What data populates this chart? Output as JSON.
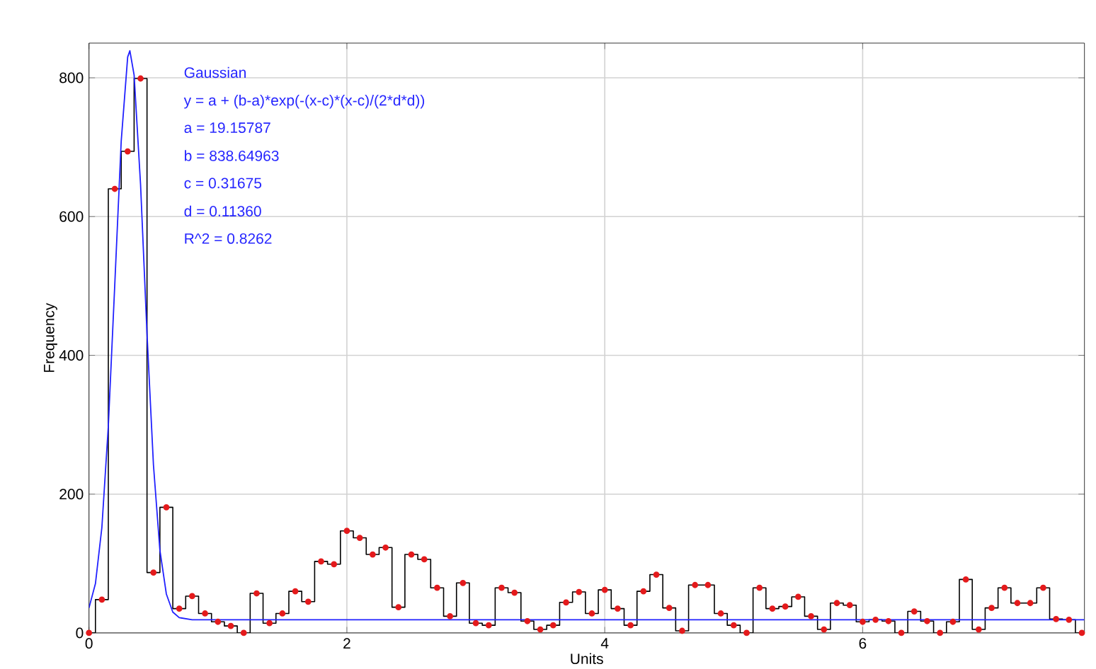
{
  "chart_data": {
    "type": "step",
    "xlabel": "Units",
    "ylabel": "Frequency",
    "xlim": [
      0,
      7.72
    ],
    "ylim": [
      0,
      850
    ],
    "xticks": [
      0,
      2,
      4,
      6
    ],
    "yticks": [
      0,
      200,
      400,
      600,
      800
    ],
    "grid": true,
    "series": [
      {
        "marker": "circle",
        "color": "#e41a1c",
        "x": [
          0,
          0.1,
          0.2,
          0.3,
          0.4,
          0.5,
          0.6,
          0.7,
          0.8,
          0.9,
          1.0,
          1.1,
          1.2,
          1.3,
          1.4,
          1.5,
          1.6,
          1.7,
          1.8,
          1.9,
          2.0,
          2.1,
          2.2,
          2.3,
          2.4,
          2.5,
          2.6,
          2.7,
          2.8,
          2.9,
          3.0,
          3.1,
          3.2,
          3.3,
          3.4,
          3.5,
          3.6,
          3.7,
          3.8,
          3.9,
          4.0,
          4.1,
          4.2,
          4.3,
          4.4,
          4.5,
          4.6,
          4.7,
          4.8,
          4.9,
          5.0,
          5.1,
          5.2,
          5.3,
          5.4,
          5.5,
          5.6,
          5.7,
          5.8,
          5.9,
          6.0,
          6.1,
          6.2,
          6.3,
          6.4,
          6.5,
          6.6,
          6.7,
          6.8,
          6.9,
          7.0,
          7.1,
          7.2,
          7.3,
          7.4,
          7.5,
          7.6,
          7.7
        ],
        "values": [
          0,
          48,
          640,
          694,
          799,
          87,
          181,
          35,
          53,
          28,
          16,
          10,
          0,
          57,
          14,
          28,
          60,
          45,
          103,
          99,
          147,
          137,
          113,
          123,
          37,
          113,
          106,
          65,
          24,
          72,
          14,
          11,
          65,
          58,
          17,
          5,
          11,
          44,
          59,
          28,
          62,
          35,
          11,
          60,
          84,
          36,
          3,
          69,
          69,
          28,
          11,
          0,
          65,
          35,
          38,
          52,
          24,
          5,
          43,
          40,
          16,
          19,
          17,
          0,
          31,
          17,
          0,
          16,
          77,
          5,
          36,
          65,
          43,
          43,
          65,
          20,
          19,
          0
        ]
      },
      {
        "type": "line",
        "marker": "none",
        "color": "#2020ff",
        "x": [
          0,
          0.05,
          0.1,
          0.15,
          0.2,
          0.25,
          0.3,
          0.317,
          0.35,
          0.4,
          0.45,
          0.5,
          0.55,
          0.6,
          0.65,
          0.7,
          0.8,
          1.0,
          7.72
        ],
        "values": [
          36,
          71,
          152,
          298,
          502,
          709,
          830,
          839,
          804,
          646,
          431,
          242,
          119,
          56,
          30,
          22,
          19,
          19,
          19
        ]
      }
    ],
    "annotations": [
      "Gaussian",
      "y = a + (b-a)*exp(-(x-c)",
      "*(x-c)/(2",
      "*d",
      "*d))",
      "a = 19.15787",
      "b = 838.64963",
      "c = 0.31675",
      "d = 0.11360",
      "R^2 = 0.8262"
    ]
  }
}
